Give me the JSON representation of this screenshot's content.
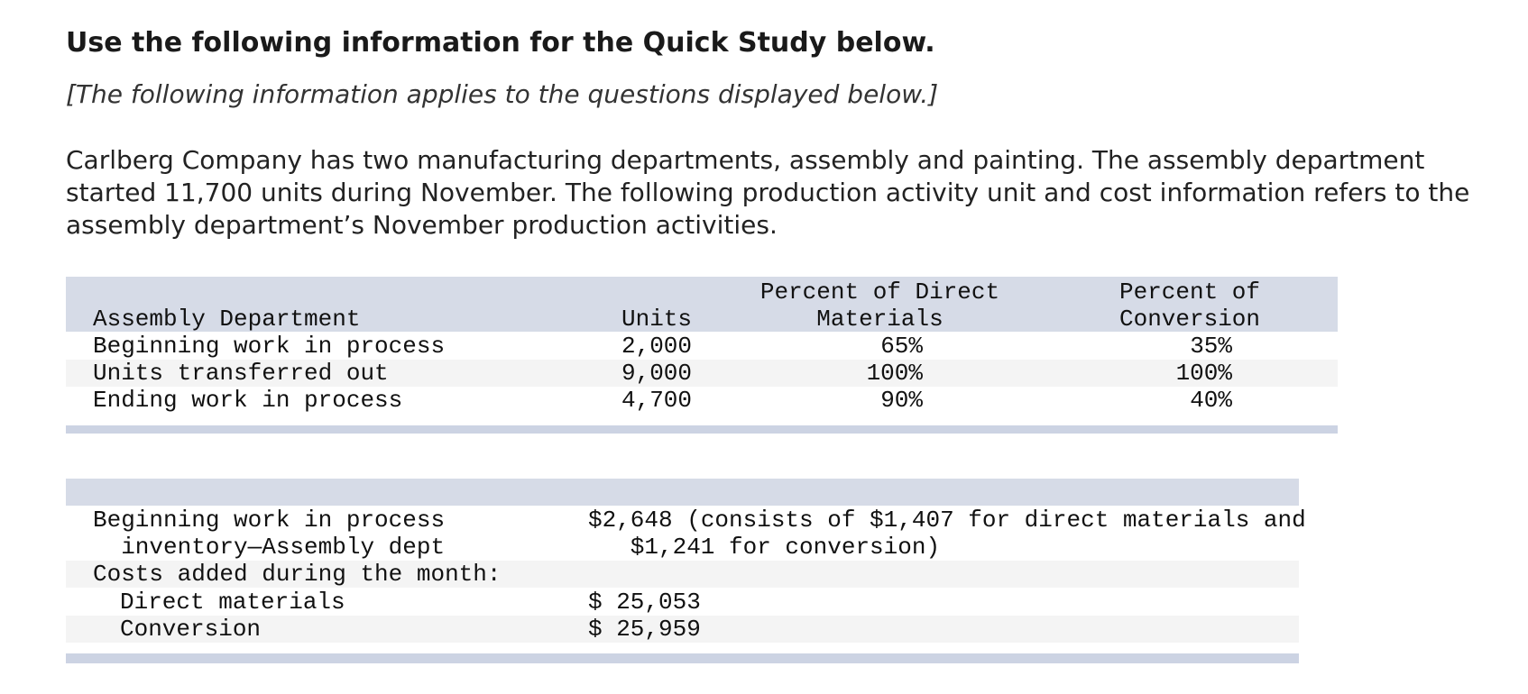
{
  "header": {
    "title": "Use the following information for the Quick Study below.",
    "note": "[The following information applies to the questions displayed below.]"
  },
  "intro": "Carlberg Company has two manufacturing departments, assembly and painting. The assembly department started 11,700 units during November. The following production activity unit and cost information refers to the assembly department’s November production activities.",
  "table1": {
    "headers": [
      "Assembly Department",
      "Units",
      "Percent of Direct Materials",
      "Percent of Conversion"
    ],
    "rows": [
      [
        "Beginning work in process",
        "2,000",
        "65%",
        "35%"
      ],
      [
        "Units transferred out",
        "9,000",
        "100%",
        "100%"
      ],
      [
        "Ending work in process",
        "4,700",
        "90%",
        "40%"
      ]
    ]
  },
  "table2": {
    "rows": [
      [
        "Beginning work in process inventory—Assembly dept",
        "$2,648 (consists of $1,407 for direct materials and $1,241 for conversion)"
      ],
      [
        "Costs added during the month:"
      ],
      [
        "Direct materials",
        "$ 25,053"
      ],
      [
        "Conversion",
        "$ 25,959"
      ]
    ]
  }
}
